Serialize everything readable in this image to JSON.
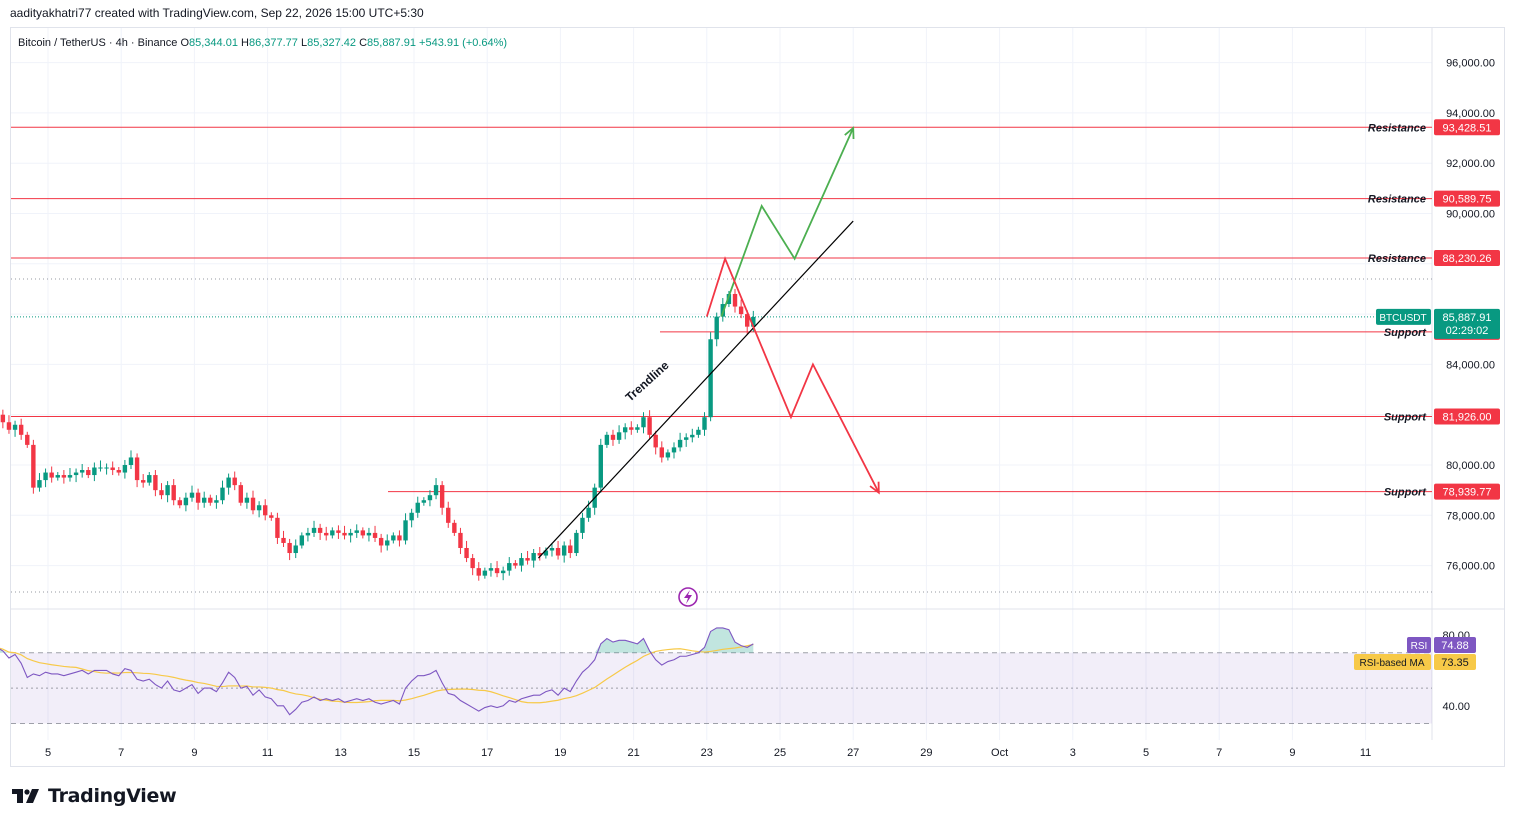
{
  "caption": "aadityakhatri77 created with TradingView.com, Sep 22, 2026 15:00 UTC+5:30",
  "brand": "TradingView",
  "colors": {
    "up": "#089981",
    "down": "#f23645",
    "resistance": "#f23645",
    "support": "#f23645",
    "rsi_line": "#7e57c2",
    "rsi_ma": "#f7c948",
    "rsi_band": "#7e57c2",
    "projection_up": "#4caf50",
    "projection_down": "#f23645",
    "trendline": "#000000",
    "grid": "#f0f3fa",
    "price_tag": "#089981"
  },
  "chart_data": {
    "type": "candlestick",
    "symbol": "Bitcoin / TetherUS",
    "interval": "4h",
    "exchange": "Binance",
    "ohlc_legend": {
      "O": "85,344.01",
      "H": "86,377.77",
      "L": "85,327.42",
      "C": "85,887.91",
      "change": "+543.91 (+0.64%)"
    },
    "y_axis": {
      "ticks": [
        "96,000.00",
        "94,000.00",
        "92,000.00",
        "90,000.00",
        "84,000.00",
        "80,000.00",
        "78,000.00",
        "76,000.00"
      ],
      "range": [
        74500,
        97500
      ]
    },
    "x_axis": {
      "ticks": [
        "5",
        "7",
        "9",
        "11",
        "13",
        "15",
        "17",
        "19",
        "21",
        "23",
        "25",
        "27",
        "29",
        "Oct",
        "3",
        "5",
        "7",
        "9",
        "11"
      ]
    },
    "current_price": {
      "label": "BTCUSDT",
      "value": "85,887.91",
      "countdown": "02:29:02"
    },
    "levels": [
      {
        "kind": "Resistance",
        "value": 93428.51,
        "label": "93,428.51"
      },
      {
        "kind": "Resistance",
        "value": 90589.75,
        "label": "90,589.75"
      },
      {
        "kind": "Resistance",
        "value": 88230.26,
        "label": "88,230.26"
      },
      {
        "kind": "Support",
        "value": 85293.22,
        "label": "85,293.22"
      },
      {
        "kind": "Support",
        "value": 81926.0,
        "label": "81,926.00"
      },
      {
        "kind": "Support",
        "value": 78939.77,
        "label": "78,939.77"
      }
    ],
    "trendline": {
      "label": "Trendline",
      "from": {
        "day": 18.4,
        "price": 76300
      },
      "to": {
        "day": 27,
        "price": 89700
      }
    },
    "projection_up": [
      [
        23.4,
        85900
      ],
      [
        24.5,
        90300
      ],
      [
        25.4,
        88200
      ],
      [
        27.0,
        93400
      ]
    ],
    "projection_down": [
      [
        23.0,
        85900
      ],
      [
        23.5,
        88200
      ],
      [
        25.3,
        81900
      ],
      [
        25.9,
        84000
      ],
      [
        27.7,
        78900
      ]
    ],
    "candles_start_day": 3.6,
    "candle_step_days": 0.1667,
    "closes": [
      82000,
      81700,
      81400,
      81600,
      81200,
      80800,
      79100,
      79400,
      79700,
      79500,
      79600,
      79500,
      79600,
      79700,
      79800,
      79600,
      79900,
      79900,
      79900,
      79800,
      79700,
      80000,
      80300,
      79400,
      79300,
      79600,
      79000,
      78800,
      79200,
      78600,
      78400,
      78700,
      78900,
      78500,
      78700,
      78500,
      78600,
      79100,
      79500,
      79200,
      78500,
      78700,
      78200,
      78400,
      78000,
      77900,
      77100,
      76900,
      76500,
      76800,
      77200,
      77300,
      77500,
      77300,
      77200,
      77400,
      77300,
      77200,
      77300,
      77400,
      77200,
      77300,
      77100,
      76800,
      77000,
      77200,
      77000,
      77800,
      78100,
      78500,
      78600,
      78800,
      79200,
      78300,
      77700,
      77300,
      76700,
      76300,
      75900,
      75600,
      75800,
      75900,
      75700,
      75800,
      76100,
      76000,
      76300,
      76200,
      76500,
      76400,
      76600,
      76700,
      76400,
      76800,
      76500,
      77300,
      77900,
      78300,
      79100,
      80800,
      81200,
      81000,
      81300,
      81500,
      81400,
      81500,
      81900,
      81200,
      80700,
      80300,
      80500,
      80700,
      81000,
      81100,
      81200,
      81400,
      81900,
      85000,
      85900,
      86400,
      86800,
      86300,
      86000,
      85500,
      85887
    ]
  },
  "rsi": {
    "label": "RSI",
    "value": "74.88",
    "ma_label": "RSI-based MA",
    "ma_value": "73.35",
    "ticks": [
      "80.00",
      "40.00"
    ],
    "upper_band": 70,
    "lower_band": 30,
    "values": [
      73,
      71,
      67,
      69,
      64,
      56,
      58,
      57,
      59,
      58,
      58,
      57,
      58,
      59,
      60,
      58,
      60,
      60,
      60,
      58,
      57,
      61,
      60,
      55,
      54,
      55,
      52,
      50,
      54,
      49,
      48,
      50,
      52,
      47,
      50,
      50,
      48,
      53,
      59,
      56,
      50,
      51,
      46,
      49,
      45,
      44,
      40,
      40,
      35,
      38,
      42,
      43,
      45,
      43,
      44,
      43,
      44,
      42,
      43,
      44,
      43,
      44,
      42,
      41,
      42,
      43,
      41,
      50,
      54,
      57,
      57,
      58,
      60,
      53,
      47,
      46,
      43,
      41,
      39,
      37,
      39,
      40,
      39,
      40,
      43,
      42,
      44,
      45,
      46,
      46,
      48,
      49,
      46,
      50,
      48,
      54,
      59,
      62,
      66,
      75,
      78,
      76,
      77,
      77,
      76,
      75,
      78,
      71,
      66,
      63,
      65,
      66,
      68,
      68,
      69,
      70,
      73,
      82,
      84,
      84,
      83,
      76,
      74,
      73,
      75
    ]
  }
}
